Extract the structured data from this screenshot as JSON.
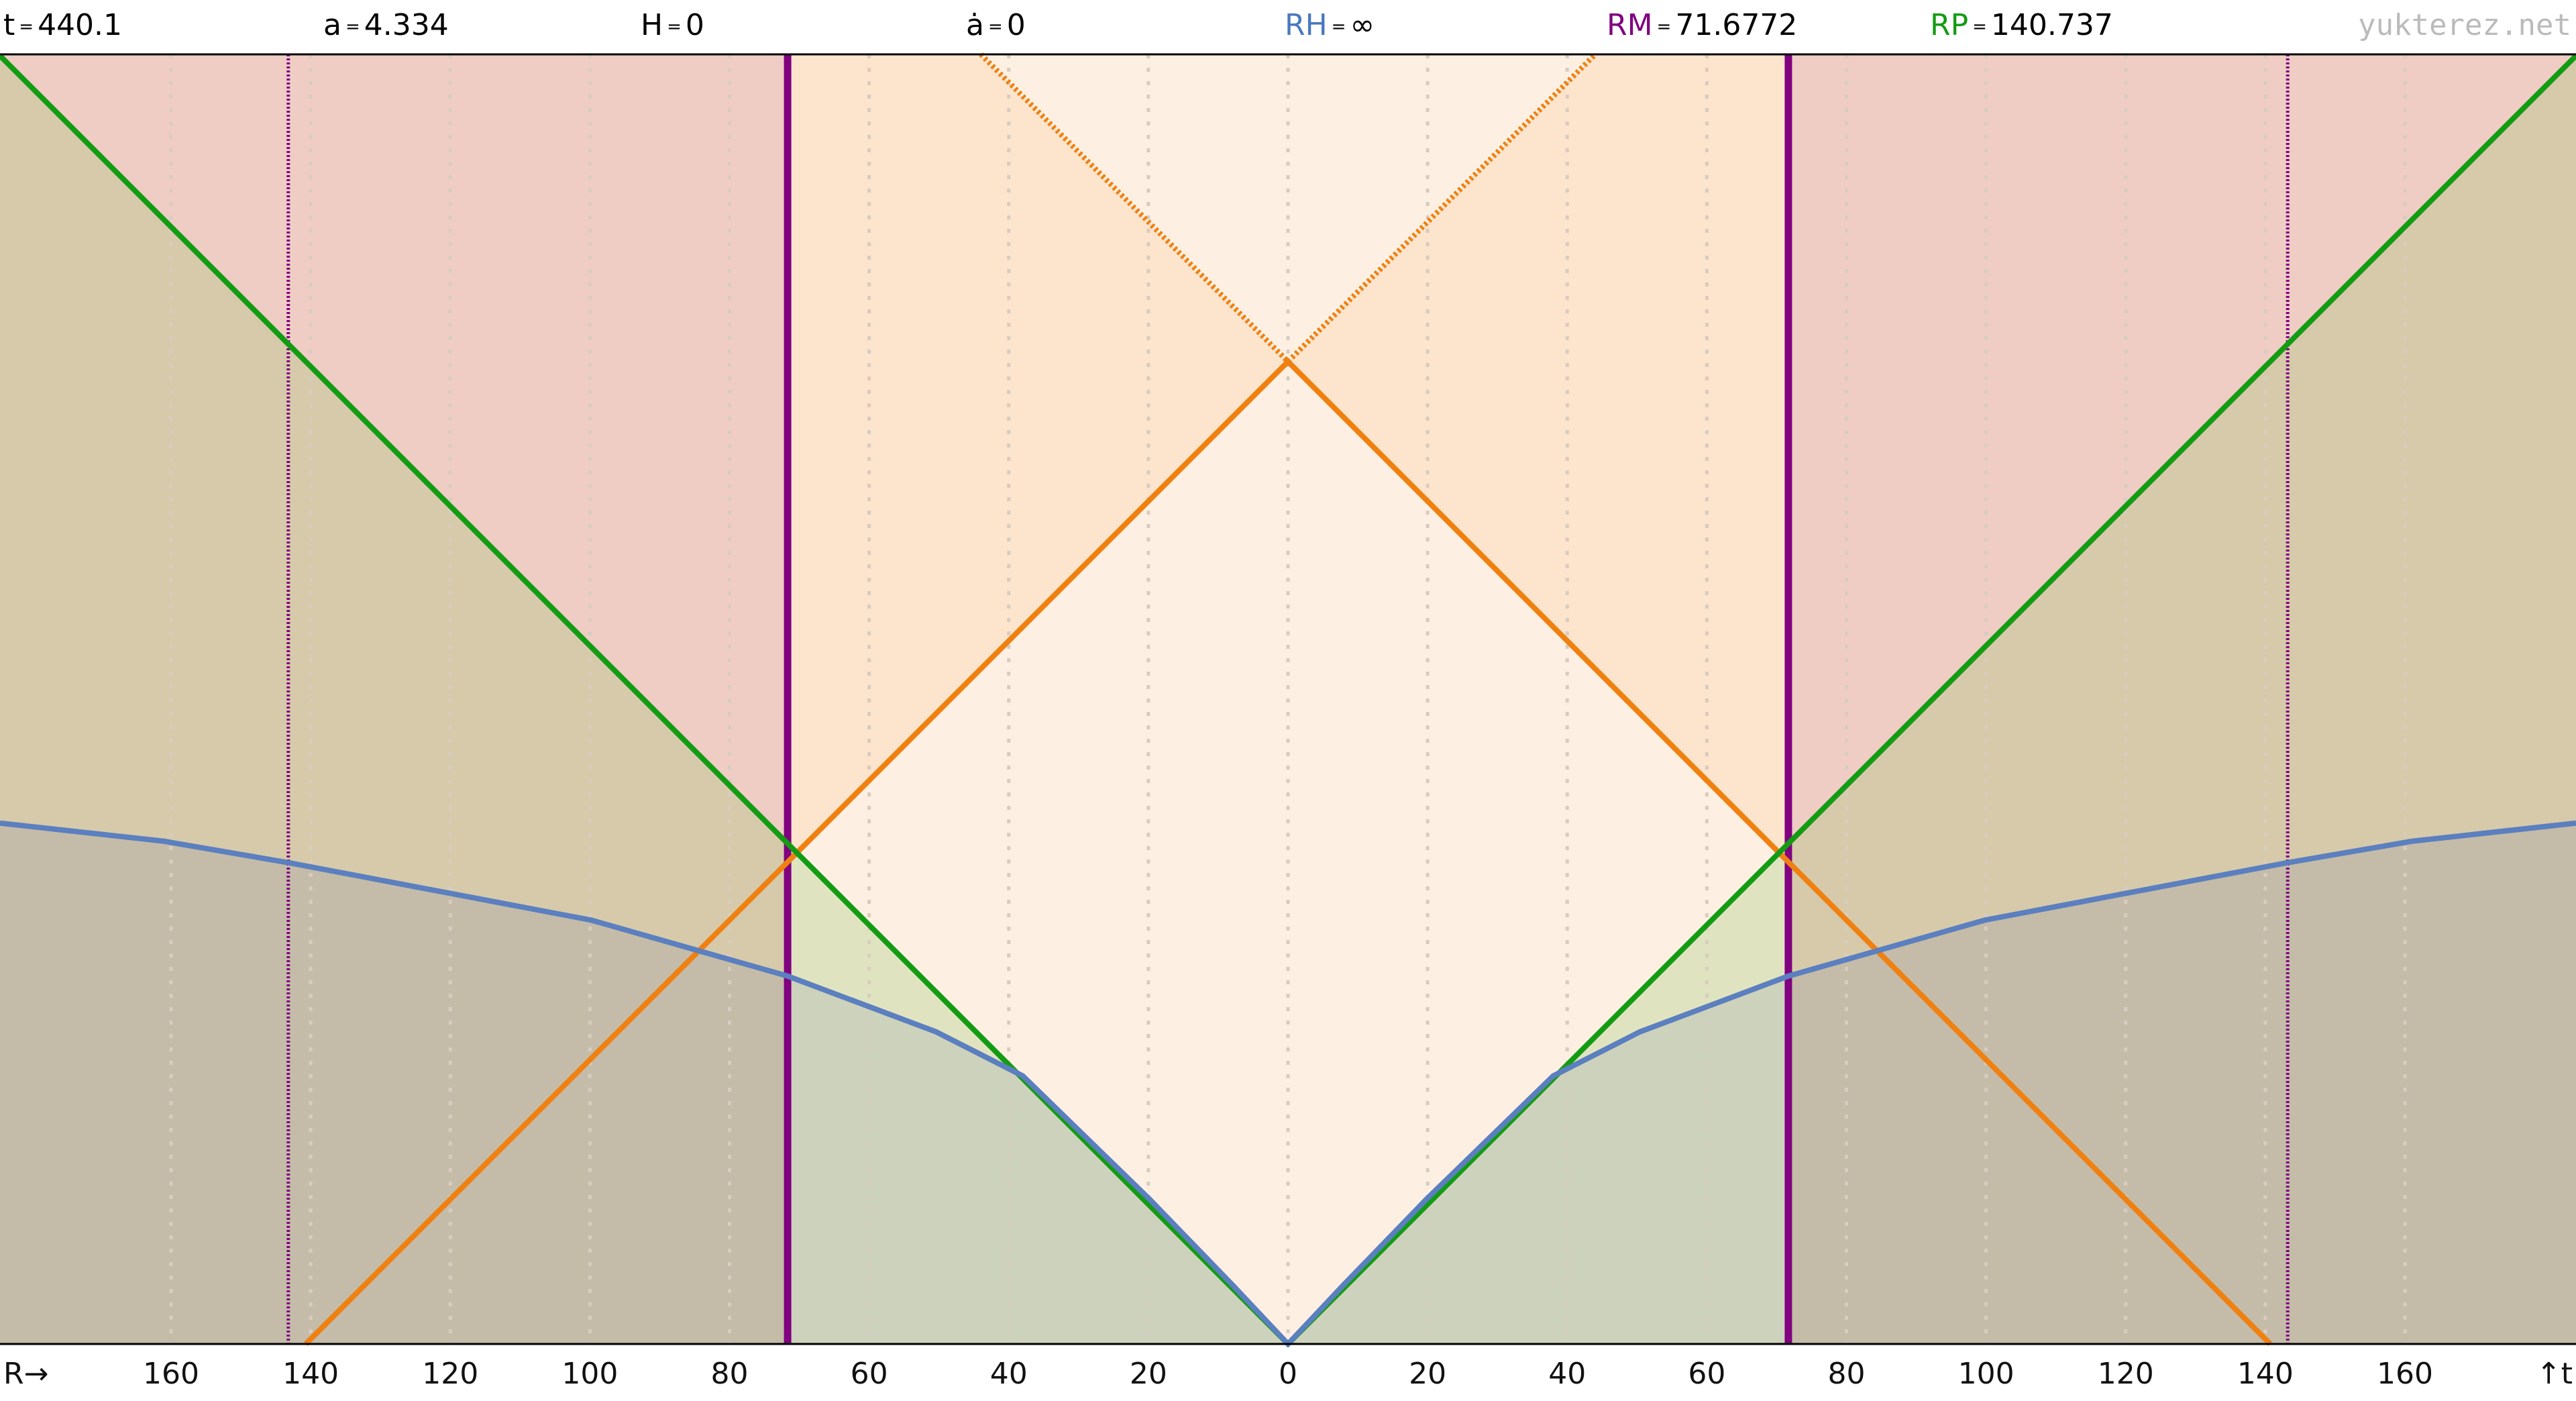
{
  "chart_data": {
    "type": "line",
    "header": [
      {
        "name": "t",
        "value": 440.1,
        "color": "#000000"
      },
      {
        "name": "a",
        "value": 4.334,
        "color": "#000000"
      },
      {
        "name": "H",
        "value": 0,
        "color": "#000000"
      },
      {
        "name": "ȧ",
        "value": 0,
        "color": "#000000"
      },
      {
        "name": "RH",
        "value": "∞",
        "color": "#4a78c0"
      },
      {
        "name": "RM",
        "value": 71.6772,
        "color": "#800080"
      },
      {
        "name": "RP",
        "value": 140.737,
        "color": "#139c13"
      }
    ],
    "separator": "=",
    "watermark": "yukterez.net",
    "xlabel": "R→",
    "ylabel": "↑t",
    "xlim": [
      -184.5,
      184.5
    ],
    "ylim": [
      0,
      184.7
    ],
    "xticks": [
      {
        "value": -160,
        "label": "160"
      },
      {
        "value": -140,
        "label": "140"
      },
      {
        "value": -120,
        "label": "120"
      },
      {
        "value": -100,
        "label": "100"
      },
      {
        "value": -80,
        "label": "80"
      },
      {
        "value": -60,
        "label": "60"
      },
      {
        "value": -40,
        "label": "40"
      },
      {
        "value": -20,
        "label": "20"
      },
      0,
      20,
      40,
      60,
      80,
      100,
      120,
      140,
      160
    ],
    "grid": true,
    "vlines": [
      {
        "x": [
          -71.6772,
          71.6772
        ],
        "color": "#800080",
        "dotted": false
      },
      {
        "x": [
          -143.2,
          143.2
        ],
        "color": "#800080",
        "dotted": true
      }
    ],
    "series": [
      {
        "color": "#f08010",
        "dotted": false,
        "x": [
          -140.7,
          0,
          140.7
        ],
        "values": [
          0,
          140.7,
          0
        ]
      },
      {
        "color": "#f08010",
        "dotted": true,
        "x": [
          -44,
          0,
          44
        ],
        "values": [
          184.7,
          140.7,
          184.7
        ]
      },
      {
        "color": "#139c13",
        "dotted": false,
        "x": [
          -184.5,
          0,
          184.5
        ],
        "values": [
          184.5,
          0,
          184.5
        ]
      },
      {
        "color": "#5b7fbf",
        "dotted": false,
        "x": [
          -184.5,
          -161,
          -143,
          -99.8,
          -71.7,
          -50.4,
          -38,
          -19.8,
          -8,
          0,
          8,
          19.8,
          38,
          50.4,
          71.7,
          99.8,
          143,
          161,
          184.5
        ],
        "values": [
          74.6,
          72,
          68.9,
          60.7,
          52.7,
          44.7,
          38.4,
          20.7,
          8.5,
          0,
          8.5,
          20.7,
          38.4,
          44.7,
          52.7,
          60.7,
          68.9,
          72,
          74.6
        ]
      }
    ]
  }
}
